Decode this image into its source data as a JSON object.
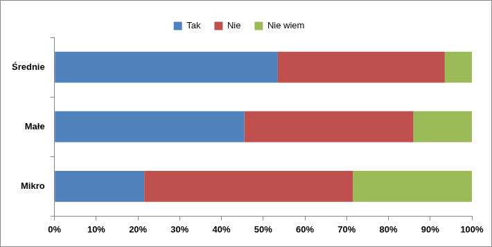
{
  "chart_data": {
    "type": "bar",
    "orientation": "horizontal",
    "stacked": true,
    "categories": [
      "Średnie",
      "Małe",
      "Mikro"
    ],
    "series": [
      {
        "name": "Tak",
        "color": "#4f81bd",
        "values": [
          53.5,
          45.5,
          21.5
        ]
      },
      {
        "name": "Nie",
        "color": "#c0504d",
        "values": [
          40,
          40.5,
          50
        ]
      },
      {
        "name": "Nie wiem",
        "color": "#9bbb59",
        "values": [
          6.5,
          14,
          28.5
        ]
      }
    ],
    "xlim": [
      0,
      100
    ],
    "xticks": [
      {
        "value": 0,
        "label": "0%"
      },
      {
        "value": 10,
        "label": "10%"
      },
      {
        "value": 20,
        "label": "20%"
      },
      {
        "value": 30,
        "label": "30%"
      },
      {
        "value": 40,
        "label": "40%"
      },
      {
        "value": 50,
        "label": "50%"
      },
      {
        "value": 60,
        "label": "60%"
      },
      {
        "value": 70,
        "label": "70%"
      },
      {
        "value": 80,
        "label": "80%"
      },
      {
        "value": 90,
        "label": "90%"
      },
      {
        "value": 100,
        "label": "100%"
      }
    ],
    "grid": false,
    "legend": "top"
  }
}
